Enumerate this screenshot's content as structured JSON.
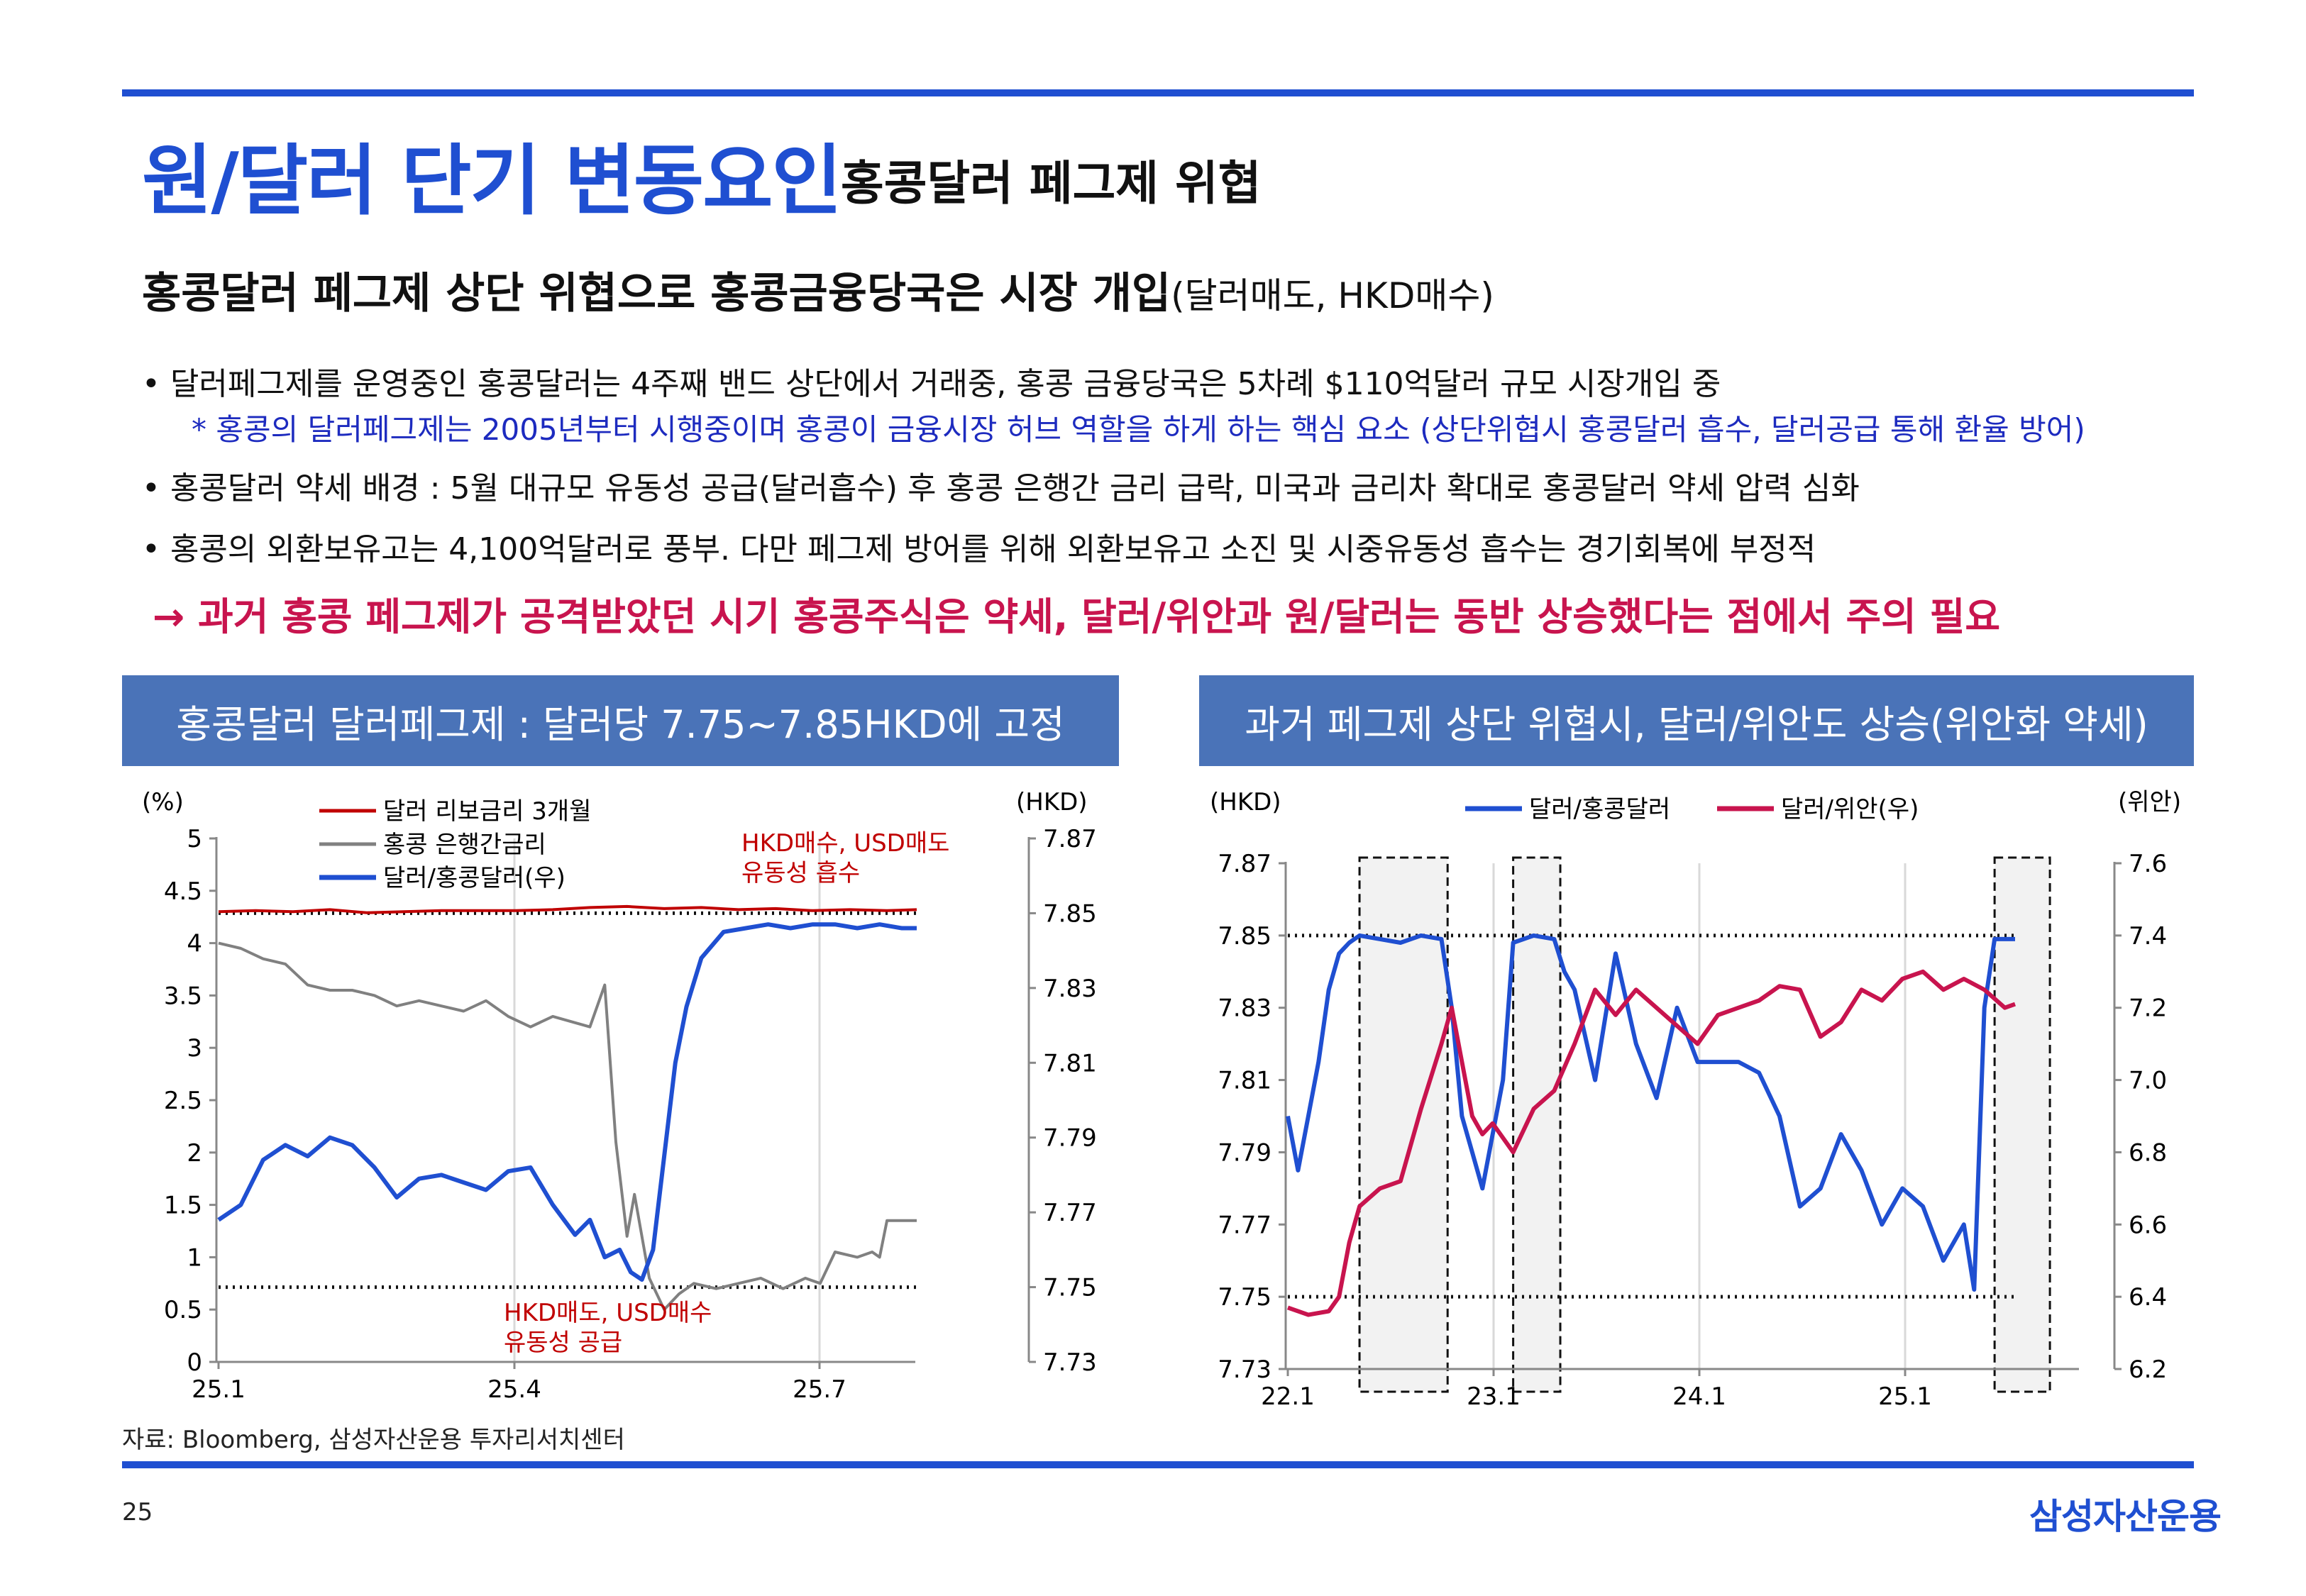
{
  "header": {
    "title": "원/달러 단기 변동요인",
    "subtitle": "홍콩달러 페그제 위협"
  },
  "headline": {
    "main": "홍콩달러 페그제 상단 위협으로 홍콩금융당국은 시장 개입",
    "paren": "(달러매도, HKD매수)"
  },
  "bullets": [
    "• 달러페그제를 운영중인 홍콩달러는 4주째 밴드 상단에서 거래중, 홍콩 금융당국은 5차례 $110억달러 규모 시장개입 중",
    "* 홍콩의 달러페그제는 2005년부터 시행중이며 홍콩이 금융시장 허브 역할을 하게 하는 핵심 요소 (상단위협시 홍콩달러 흡수, 달러공급 통해 환율 방어)",
    "• 홍콩달러 약세 배경 :  5월 대규모 유동성 공급(달러흡수) 후 홍콩 은행간 금리 급락, 미국과 금리차 확대로 홍콩달러 약세 압력 심화",
    "• 홍콩의 외환보유고는 4,100억달러로 풍부. 다만 페그제 방어를 위해 외환보유고 소진 및 시중유동성 흡수는 경기회복에 부정적"
  ],
  "conclusion": "→ 과거 홍콩 페그제가 공격받았던 시기 홍콩주식은 약세, 달러/위안과 원/달러는 동반 상승했다는 점에서 주의 필요",
  "colors": {
    "accent": "#1f4fd1",
    "pink": "#c8144e",
    "gray": "#808080",
    "red": "#c00000",
    "header_box": "#4a73b8"
  },
  "chart_data": [
    {
      "type": "line",
      "title": "홍콩달러 달러페그제 : 달러당 7.75~7.85HKD에 고정",
      "left_axis_label": "(%)",
      "right_axis_label": "(HKD)",
      "x_ticks": [
        "25.1",
        "25.4",
        "25.7"
      ],
      "y_left_ticks": [
        "0",
        "0.5",
        "1",
        "1.5",
        "2",
        "2.5",
        "3",
        "3.5",
        "4",
        "4.5",
        "5"
      ],
      "y_right_ticks": [
        "7.73",
        "7.75",
        "7.77",
        "7.79",
        "7.81",
        "7.83",
        "7.85",
        "7.87"
      ],
      "ylim_left": [
        0,
        5
      ],
      "ylim_right": [
        7.73,
        7.87
      ],
      "x_range": [
        0,
        9.4
      ],
      "annotations": [
        "HKD매수, USD매도",
        "유동성 흡수",
        "HKD매도, USD매수",
        "유동성 공급"
      ],
      "reference_lines_right": [
        7.85,
        7.75
      ],
      "series": [
        {
          "name": "달러 리보금리 3개월",
          "axis": "left",
          "color": "#c00000",
          "x": [
            0,
            0.5,
            1,
            1.5,
            2,
            2.5,
            3,
            3.5,
            4,
            4.5,
            5,
            5.5,
            6,
            6.5,
            7,
            7.5,
            8,
            8.5,
            9,
            9.4
          ],
          "y": [
            4.3,
            4.31,
            4.3,
            4.32,
            4.29,
            4.3,
            4.31,
            4.31,
            4.31,
            4.32,
            4.34,
            4.35,
            4.33,
            4.34,
            4.32,
            4.33,
            4.31,
            4.32,
            4.31,
            4.32
          ]
        },
        {
          "name": "홍콩 은행간금리",
          "axis": "left",
          "color": "#808080",
          "x": [
            0,
            0.3,
            0.6,
            0.9,
            1.2,
            1.5,
            1.8,
            2.1,
            2.4,
            2.7,
            3.0,
            3.3,
            3.6,
            3.9,
            4.2,
            4.5,
            5.0,
            5.2,
            5.35,
            5.5,
            5.6,
            5.8,
            6.0,
            6.2,
            6.4,
            6.7,
            7.0,
            7.3,
            7.6,
            7.9,
            8.1,
            8.3,
            8.6,
            8.8,
            8.9,
            9.0,
            9.2,
            9.4
          ],
          "y": [
            4.0,
            3.95,
            3.85,
            3.8,
            3.6,
            3.55,
            3.55,
            3.5,
            3.4,
            3.45,
            3.4,
            3.35,
            3.45,
            3.3,
            3.2,
            3.3,
            3.2,
            3.6,
            2.1,
            1.2,
            1.6,
            0.8,
            0.5,
            0.65,
            0.75,
            0.7,
            0.75,
            0.8,
            0.7,
            0.8,
            0.75,
            1.05,
            1.0,
            1.05,
            1.0,
            1.35,
            1.35,
            1.35
          ]
        },
        {
          "name": "달러/홍콩달러(우)",
          "axis": "right",
          "color": "#1f4fd1",
          "x": [
            0,
            0.3,
            0.6,
            0.9,
            1.2,
            1.5,
            1.8,
            2.1,
            2.4,
            2.7,
            3.0,
            3.3,
            3.6,
            3.9,
            4.2,
            4.5,
            4.8,
            5.0,
            5.2,
            5.4,
            5.55,
            5.7,
            5.85,
            6.0,
            6.15,
            6.3,
            6.5,
            6.8,
            7.1,
            7.4,
            7.7,
            8.0,
            8.3,
            8.6,
            8.9,
            9.2,
            9.4
          ],
          "y": [
            7.768,
            7.772,
            7.784,
            7.788,
            7.785,
            7.79,
            7.788,
            7.782,
            7.774,
            7.779,
            7.78,
            7.778,
            7.776,
            7.781,
            7.782,
            7.772,
            7.764,
            7.768,
            7.758,
            7.76,
            7.754,
            7.752,
            7.76,
            7.785,
            7.81,
            7.825,
            7.838,
            7.845,
            7.846,
            7.847,
            7.846,
            7.847,
            7.847,
            7.846,
            7.847,
            7.846,
            7.846
          ]
        }
      ]
    },
    {
      "type": "line",
      "title": "과거 페그제 상단 위협시, 달러/위안도 상승(위안화 약세)",
      "left_axis_label": "(HKD)",
      "right_axis_label": "(위안)",
      "x_ticks": [
        "22.1",
        "23.1",
        "24.1",
        "25.1"
      ],
      "y_left_ticks": [
        "7.73",
        "7.75",
        "7.77",
        "7.79",
        "7.81",
        "7.83",
        "7.85",
        "7.87"
      ],
      "y_right_ticks": [
        "6.2",
        "6.4",
        "6.6",
        "6.8",
        "7.0",
        "7.2",
        "7.4",
        "7.6"
      ],
      "ylim_left": [
        7.73,
        7.87
      ],
      "ylim_right": [
        6.2,
        7.6
      ],
      "x_range": [
        0,
        3.55
      ],
      "reference_lines_left": [
        7.85,
        7.75
      ],
      "highlight_periods": [
        [
          0.35,
          0.78
        ],
        [
          1.1,
          1.33
        ],
        [
          3.45,
          3.72
        ]
      ],
      "series": [
        {
          "name": "달러/홍콩달러",
          "axis": "left",
          "color": "#1f4fd1",
          "x": [
            0,
            0.05,
            0.1,
            0.15,
            0.2,
            0.25,
            0.3,
            0.35,
            0.45,
            0.55,
            0.65,
            0.75,
            0.8,
            0.85,
            0.9,
            0.95,
            1.0,
            1.05,
            1.1,
            1.2,
            1.3,
            1.35,
            1.4,
            1.5,
            1.6,
            1.7,
            1.8,
            1.9,
            2.0,
            2.1,
            2.2,
            2.3,
            2.4,
            2.5,
            2.6,
            2.7,
            2.8,
            2.9,
            3.0,
            3.1,
            3.2,
            3.3,
            3.35,
            3.4,
            3.45,
            3.55
          ],
          "y": [
            7.8,
            7.785,
            7.8,
            7.815,
            7.835,
            7.845,
            7.848,
            7.85,
            7.849,
            7.848,
            7.85,
            7.849,
            7.83,
            7.8,
            7.79,
            7.78,
            7.795,
            7.81,
            7.848,
            7.85,
            7.849,
            7.84,
            7.835,
            7.81,
            7.845,
            7.82,
            7.805,
            7.83,
            7.815,
            7.815,
            7.815,
            7.812,
            7.8,
            7.775,
            7.78,
            7.795,
            7.785,
            7.77,
            7.78,
            7.775,
            7.76,
            7.77,
            7.752,
            7.83,
            7.849,
            7.849
          ]
        },
        {
          "name": "달러/위안(우)",
          "axis": "right",
          "color": "#c8144e",
          "x": [
            0,
            0.1,
            0.2,
            0.25,
            0.3,
            0.35,
            0.45,
            0.55,
            0.65,
            0.75,
            0.8,
            0.85,
            0.9,
            0.95,
            1.0,
            1.1,
            1.2,
            1.3,
            1.4,
            1.5,
            1.6,
            1.7,
            1.8,
            1.9,
            2.0,
            2.1,
            2.2,
            2.3,
            2.4,
            2.5,
            2.6,
            2.7,
            2.8,
            2.9,
            3.0,
            3.1,
            3.2,
            3.3,
            3.4,
            3.5,
            3.55
          ],
          "y": [
            6.37,
            6.35,
            6.36,
            6.4,
            6.55,
            6.65,
            6.7,
            6.72,
            6.92,
            7.1,
            7.2,
            7.05,
            6.9,
            6.85,
            6.88,
            6.8,
            6.92,
            6.97,
            7.1,
            7.25,
            7.18,
            7.25,
            7.2,
            7.15,
            7.1,
            7.18,
            7.2,
            7.22,
            7.26,
            7.25,
            7.12,
            7.16,
            7.25,
            7.22,
            7.28,
            7.3,
            7.25,
            7.28,
            7.25,
            7.2,
            7.21
          ]
        }
      ]
    }
  ],
  "chart_labels": {
    "left_legend": [
      "달러 리보금리 3개월",
      "홍콩 은행간금리",
      "달러/홍콩달러(우)"
    ],
    "right_legend": [
      "달러/홍콩달러",
      "달러/위안(우)"
    ]
  },
  "source": "자료: Bloomberg, 삼성자산운용 투자리서치센터",
  "page_number": "25",
  "logo": "삼성자산운용"
}
